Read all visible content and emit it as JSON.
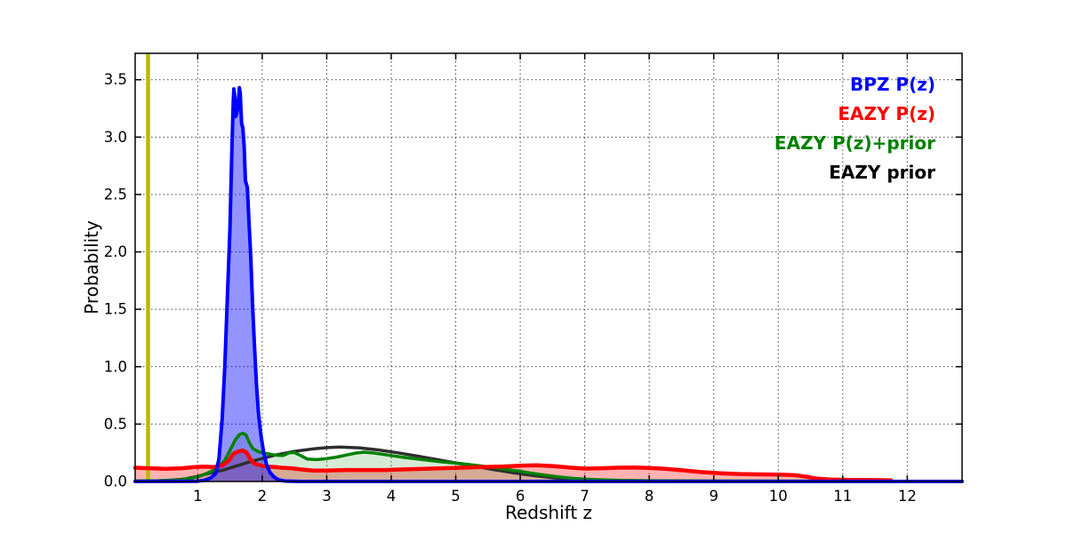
{
  "legend": {
    "items": [
      {
        "label": "BPZ P(z)",
        "color": "#0000ff"
      },
      {
        "label": "EAZY P(z)",
        "color": "#ff0000"
      },
      {
        "label": "EAZY P(z)+prior",
        "color": "#008000"
      },
      {
        "label": "EAZY prior",
        "color": "#000000"
      }
    ]
  },
  "chart_data": {
    "type": "line",
    "title": "",
    "xlabel": "Redshift z",
    "ylabel": "Probability",
    "xlim": [
      0.03,
      12.85
    ],
    "ylim": [
      0,
      3.73
    ],
    "x_tick_labels": [
      "1",
      "2",
      "3",
      "4",
      "5",
      "6",
      "7",
      "8",
      "9",
      "10",
      "11",
      "12"
    ],
    "y_tick_labels": [
      "0.0",
      "0.5",
      "1.0",
      "1.5",
      "2.0",
      "2.5",
      "3.0",
      "3.5"
    ],
    "grid": "dotted",
    "grid_color": "#444444",
    "legend_position": "upper right",
    "annotations": [
      {
        "type": "vline",
        "x": 0.23,
        "color": "#b9b900",
        "name": "redshift-marker"
      }
    ],
    "series": [
      {
        "name": "BPZ P(z)",
        "color": "#0000ff",
        "line_width": 4,
        "fill_color": "rgba(0,0,255,0.42)",
        "points": [
          [
            0.03,
            0
          ],
          [
            1.0,
            0.002
          ],
          [
            1.1,
            0.01
          ],
          [
            1.2,
            0.03
          ],
          [
            1.28,
            0.07
          ],
          [
            1.33,
            0.2
          ],
          [
            1.38,
            0.55
          ],
          [
            1.42,
            1.0
          ],
          [
            1.46,
            1.6
          ],
          [
            1.5,
            2.2
          ],
          [
            1.53,
            2.9
          ],
          [
            1.55,
            3.3
          ],
          [
            1.56,
            3.42
          ],
          [
            1.575,
            3.35
          ],
          [
            1.59,
            3.18
          ],
          [
            1.61,
            3.22
          ],
          [
            1.63,
            3.3
          ],
          [
            1.645,
            3.43
          ],
          [
            1.66,
            3.38
          ],
          [
            1.68,
            3.12
          ],
          [
            1.7,
            3.08
          ],
          [
            1.72,
            2.92
          ],
          [
            1.74,
            2.62
          ],
          [
            1.77,
            2.56
          ],
          [
            1.8,
            2.2
          ],
          [
            1.82,
            1.98
          ],
          [
            1.85,
            1.55
          ],
          [
            1.88,
            1.18
          ],
          [
            1.91,
            0.85
          ],
          [
            1.94,
            0.6
          ],
          [
            1.98,
            0.4
          ],
          [
            2.02,
            0.26
          ],
          [
            2.07,
            0.14
          ],
          [
            2.12,
            0.08
          ],
          [
            2.18,
            0.04
          ],
          [
            2.25,
            0.015
          ],
          [
            2.35,
            0.004
          ],
          [
            2.6,
            0
          ],
          [
            12.85,
            0
          ]
        ]
      },
      {
        "name": "EAZY P(z)",
        "color": "#ff0000",
        "line_width": 4.5,
        "fill_color": "rgba(255,0,0,0.30)",
        "points": [
          [
            0.03,
            0.12
          ],
          [
            0.25,
            0.115
          ],
          [
            0.5,
            0.11
          ],
          [
            0.75,
            0.115
          ],
          [
            0.95,
            0.125
          ],
          [
            1.1,
            0.13
          ],
          [
            1.25,
            0.125
          ],
          [
            1.38,
            0.14
          ],
          [
            1.48,
            0.18
          ],
          [
            1.55,
            0.24
          ],
          [
            1.62,
            0.26
          ],
          [
            1.7,
            0.27
          ],
          [
            1.76,
            0.25
          ],
          [
            1.82,
            0.19
          ],
          [
            1.88,
            0.155
          ],
          [
            1.95,
            0.145
          ],
          [
            2.05,
            0.13
          ],
          [
            2.2,
            0.125
          ],
          [
            2.3,
            0.12
          ],
          [
            2.45,
            0.115
          ],
          [
            2.6,
            0.105
          ],
          [
            2.8,
            0.095
          ],
          [
            3.0,
            0.095
          ],
          [
            3.3,
            0.1
          ],
          [
            3.6,
            0.1
          ],
          [
            3.9,
            0.1
          ],
          [
            4.2,
            0.105
          ],
          [
            4.5,
            0.11
          ],
          [
            4.8,
            0.115
          ],
          [
            5.1,
            0.12
          ],
          [
            5.4,
            0.125
          ],
          [
            5.7,
            0.13
          ],
          [
            6.0,
            0.138
          ],
          [
            6.25,
            0.142
          ],
          [
            6.5,
            0.135
          ],
          [
            6.75,
            0.122
          ],
          [
            7.0,
            0.112
          ],
          [
            7.25,
            0.115
          ],
          [
            7.5,
            0.12
          ],
          [
            7.75,
            0.122
          ],
          [
            8.0,
            0.118
          ],
          [
            8.25,
            0.11
          ],
          [
            8.5,
            0.098
          ],
          [
            8.8,
            0.082
          ],
          [
            9.1,
            0.072
          ],
          [
            9.4,
            0.065
          ],
          [
            9.7,
            0.062
          ],
          [
            10.0,
            0.06
          ],
          [
            10.25,
            0.055
          ],
          [
            10.45,
            0.04
          ],
          [
            10.6,
            0.025
          ],
          [
            10.8,
            0.018
          ],
          [
            11.1,
            0.014
          ],
          [
            11.5,
            0.012
          ],
          [
            11.75,
            0.01
          ]
        ]
      },
      {
        "name": "EAZY P(z)+prior",
        "color": "#008000",
        "line_width": 3.5,
        "fill_color": "rgba(0,128,0,0.16)",
        "points": [
          [
            0.03,
            0.005
          ],
          [
            0.4,
            0.007
          ],
          [
            0.7,
            0.013
          ],
          [
            0.9,
            0.028
          ],
          [
            1.05,
            0.05
          ],
          [
            1.2,
            0.085
          ],
          [
            1.32,
            0.125
          ],
          [
            1.42,
            0.185
          ],
          [
            1.5,
            0.27
          ],
          [
            1.58,
            0.36
          ],
          [
            1.65,
            0.41
          ],
          [
            1.7,
            0.42
          ],
          [
            1.75,
            0.405
          ],
          [
            1.8,
            0.34
          ],
          [
            1.85,
            0.29
          ],
          [
            1.92,
            0.265
          ],
          [
            2.0,
            0.25
          ],
          [
            2.1,
            0.24
          ],
          [
            2.2,
            0.23
          ],
          [
            2.32,
            0.225
          ],
          [
            2.42,
            0.25
          ],
          [
            2.5,
            0.252
          ],
          [
            2.6,
            0.225
          ],
          [
            2.7,
            0.195
          ],
          [
            2.85,
            0.19
          ],
          [
            3.0,
            0.2
          ],
          [
            3.15,
            0.212
          ],
          [
            3.3,
            0.23
          ],
          [
            3.45,
            0.248
          ],
          [
            3.58,
            0.255
          ],
          [
            3.7,
            0.25
          ],
          [
            3.85,
            0.238
          ],
          [
            4.0,
            0.226
          ],
          [
            4.2,
            0.21
          ],
          [
            4.4,
            0.196
          ],
          [
            4.6,
            0.183
          ],
          [
            4.8,
            0.17
          ],
          [
            5.0,
            0.16
          ],
          [
            5.2,
            0.148
          ],
          [
            5.4,
            0.135
          ],
          [
            5.6,
            0.12
          ],
          [
            5.8,
            0.104
          ],
          [
            6.0,
            0.088
          ],
          [
            6.2,
            0.07
          ],
          [
            6.4,
            0.054
          ],
          [
            6.6,
            0.04
          ],
          [
            6.8,
            0.028
          ],
          [
            7.0,
            0.02
          ],
          [
            7.3,
            0.013
          ],
          [
            7.6,
            0.009
          ],
          [
            8.0,
            0.007
          ],
          [
            8.5,
            0.006
          ],
          [
            9.0,
            0.005
          ],
          [
            10.0,
            0.004
          ],
          [
            11.0,
            0.004
          ],
          [
            11.75,
            0.004
          ]
        ]
      },
      {
        "name": "EAZY prior",
        "color": "#2e2e2e",
        "line_width": 3.5,
        "fill_color": null,
        "points": [
          [
            0.03,
            0.002
          ],
          [
            0.5,
            0.008
          ],
          [
            0.8,
            0.022
          ],
          [
            1.0,
            0.045
          ],
          [
            1.2,
            0.075
          ],
          [
            1.4,
            0.1
          ],
          [
            1.6,
            0.135
          ],
          [
            1.8,
            0.17
          ],
          [
            2.0,
            0.2
          ],
          [
            2.2,
            0.23
          ],
          [
            2.5,
            0.262
          ],
          [
            2.8,
            0.285
          ],
          [
            3.0,
            0.295
          ],
          [
            3.2,
            0.3
          ],
          [
            3.5,
            0.293
          ],
          [
            3.8,
            0.275
          ],
          [
            4.1,
            0.25
          ],
          [
            4.4,
            0.222
          ],
          [
            4.7,
            0.192
          ],
          [
            5.0,
            0.162
          ],
          [
            5.3,
            0.132
          ],
          [
            5.6,
            0.102
          ],
          [
            5.9,
            0.075
          ],
          [
            6.2,
            0.052
          ],
          [
            6.5,
            0.033
          ],
          [
            6.8,
            0.018
          ],
          [
            7.1,
            0.009
          ],
          [
            7.5,
            0.004
          ],
          [
            8.0,
            0.002
          ],
          [
            9.0,
            0.001
          ],
          [
            12.85,
            0.001
          ]
        ]
      }
    ]
  }
}
